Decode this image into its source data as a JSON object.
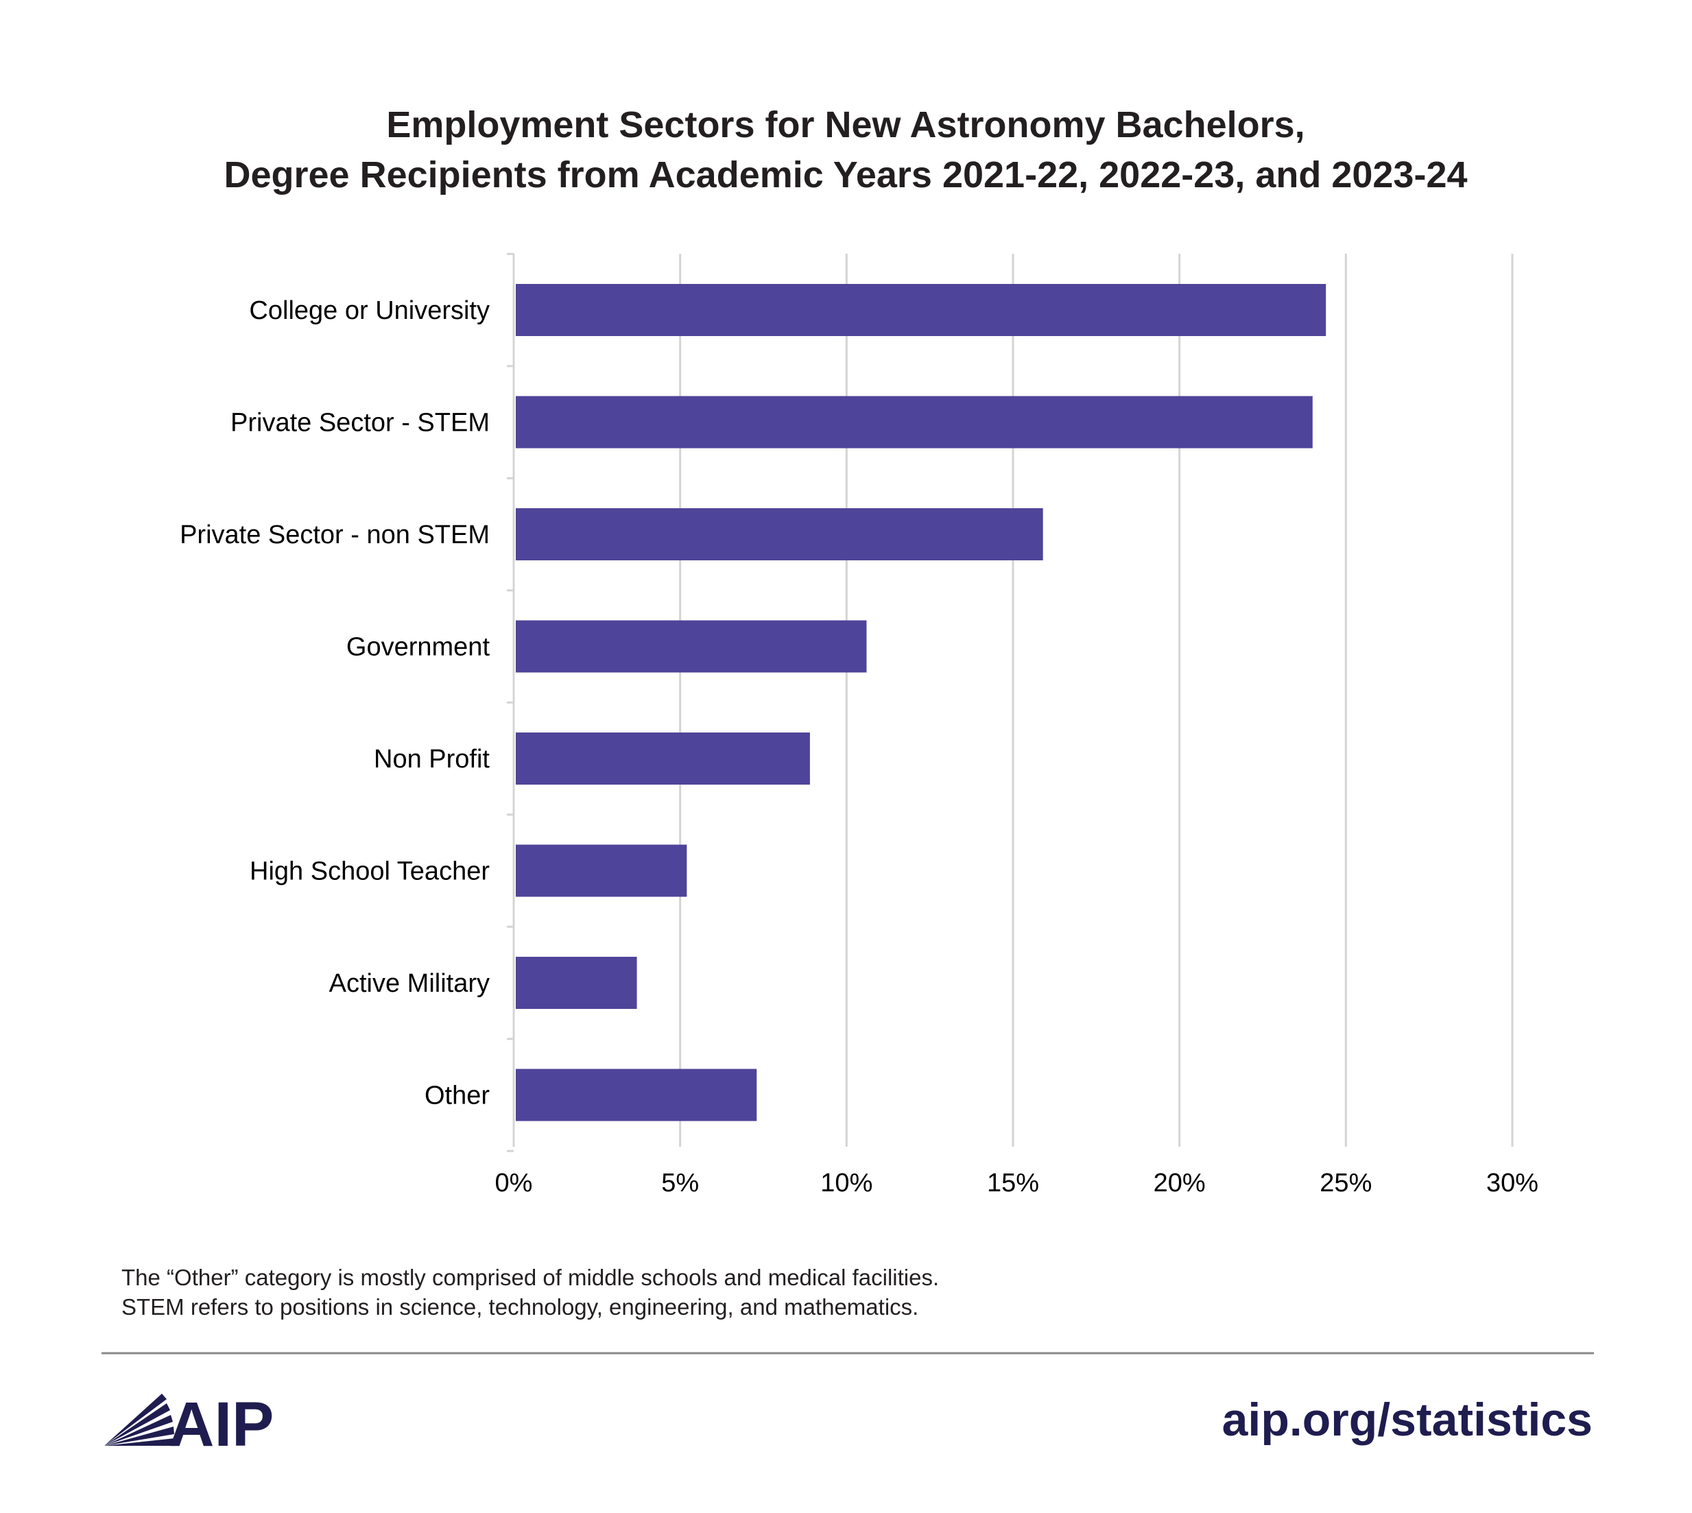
{
  "chart_data": {
    "type": "bar",
    "orientation": "horizontal",
    "title": "Employment Sectors for New Astronomy Bachelors,",
    "subtitle": "Degree Recipients from Academic Years 2021-22, 2022-23, and 2023-24",
    "categories": [
      "College or University",
      "Private Sector - STEM",
      "Private Sector - non STEM",
      "Government",
      "Non Profit",
      "High School Teacher",
      "Active Military",
      "Other"
    ],
    "values": [
      24.4,
      24.0,
      15.9,
      10.6,
      8.9,
      5.2,
      3.7,
      7.3
    ],
    "xlim": [
      0,
      30
    ],
    "xticks": [
      0,
      5,
      10,
      15,
      20,
      25,
      30
    ],
    "xtick_labels": [
      "0%",
      "5%",
      "10%",
      "15%",
      "20%",
      "25%",
      "30%"
    ],
    "xlabel": "",
    "ylabel": "",
    "grid": "vertical",
    "bar_color": "#4e4499",
    "notes": [
      "The “Other” category is mostly comprised of middle schools and medical facilities.",
      "STEM refers to positions in science, technology, engineering, and mathematics."
    ]
  },
  "footer": {
    "logo_text": "AIP",
    "url": "aip.org/statistics",
    "brand_color": "#1f1d4f"
  }
}
